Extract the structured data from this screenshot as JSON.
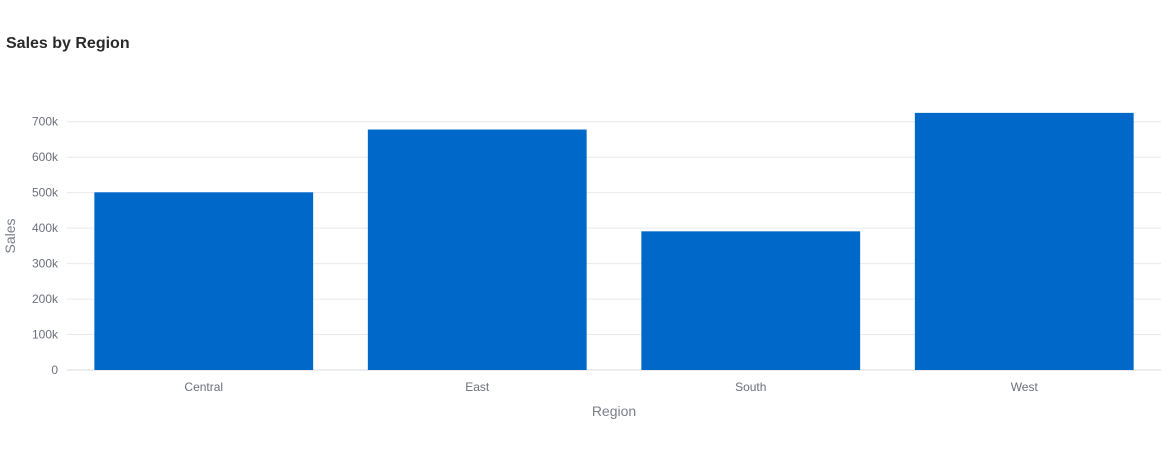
{
  "chart_data": {
    "type": "bar",
    "title": "Sales by Region",
    "xlabel": "Region",
    "ylabel": "Sales",
    "categories": [
      "Central",
      "East",
      "South",
      "West"
    ],
    "values": [
      501000,
      678000,
      391000,
      725000
    ],
    "ylim": [
      0,
      750000
    ],
    "yticks": [
      0,
      100000,
      200000,
      300000,
      400000,
      500000,
      600000,
      700000
    ],
    "ytick_labels": [
      "0",
      "100k",
      "200k",
      "300k",
      "400k",
      "500k",
      "600k",
      "700k"
    ],
    "grid": true,
    "legend": "none",
    "bar_color": "#0068c9",
    "grid_color": "#e8eaee",
    "axis_color": "#d5d8de"
  }
}
